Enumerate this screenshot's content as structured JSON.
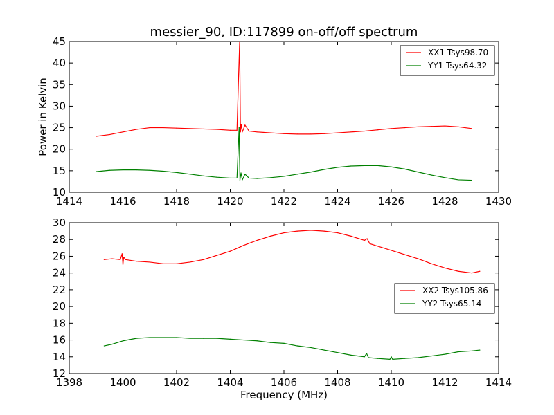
{
  "title": "messier_90, ID:117899 on-off/off spectrum",
  "chart_data": [
    {
      "type": "line",
      "title": "messier_90, ID:117899 on-off/off spectrum",
      "xlabel": "",
      "ylabel": "Power in Kelvin",
      "xlim": [
        1414,
        1430
      ],
      "ylim": [
        10,
        45
      ],
      "xticks": [
        "1414",
        "1416",
        "1418",
        "1420",
        "1422",
        "1424",
        "1426",
        "1428",
        "1430"
      ],
      "yticks": [
        "10",
        "15",
        "20",
        "25",
        "30",
        "35",
        "40",
        "45"
      ],
      "legend": "top-right",
      "grid": false,
      "series": [
        {
          "name": "XX1 Tsys98.70",
          "color": "#ff0000",
          "x": [
            1415.0,
            1415.5,
            1416.0,
            1416.5,
            1417.0,
            1417.5,
            1418.0,
            1418.5,
            1419.0,
            1419.5,
            1420.0,
            1420.25,
            1420.35,
            1420.38,
            1420.41,
            1420.45,
            1420.55,
            1420.7,
            1421.0,
            1421.5,
            1422.0,
            1422.5,
            1423.0,
            1423.5,
            1424.0,
            1424.5,
            1425.0,
            1425.5,
            1426.0,
            1426.5,
            1427.0,
            1427.5,
            1428.0,
            1428.5,
            1429.0
          ],
          "values": [
            23.0,
            23.4,
            24.0,
            24.6,
            25.0,
            25.0,
            24.9,
            24.8,
            24.7,
            24.6,
            24.4,
            24.4,
            45.0,
            24.0,
            25.8,
            24.0,
            25.6,
            24.2,
            24.0,
            23.8,
            23.6,
            23.5,
            23.5,
            23.6,
            23.8,
            24.0,
            24.2,
            24.5,
            24.8,
            25.0,
            25.2,
            25.3,
            25.4,
            25.2,
            24.8
          ]
        },
        {
          "name": "YY1 Tsys64.32",
          "color": "#008000",
          "x": [
            1415.0,
            1415.5,
            1416.0,
            1416.5,
            1417.0,
            1417.5,
            1418.0,
            1418.5,
            1419.0,
            1419.5,
            1420.0,
            1420.25,
            1420.33,
            1420.36,
            1420.4,
            1420.45,
            1420.55,
            1420.7,
            1421.0,
            1421.5,
            1422.0,
            1422.5,
            1423.0,
            1423.5,
            1424.0,
            1424.5,
            1425.0,
            1425.5,
            1426.0,
            1426.5,
            1427.0,
            1427.5,
            1428.0,
            1428.5,
            1429.0
          ],
          "values": [
            14.8,
            15.1,
            15.2,
            15.2,
            15.1,
            14.9,
            14.6,
            14.2,
            13.8,
            13.5,
            13.3,
            13.3,
            25.0,
            12.8,
            14.5,
            12.9,
            14.2,
            13.3,
            13.2,
            13.4,
            13.7,
            14.2,
            14.7,
            15.3,
            15.8,
            16.1,
            16.2,
            16.2,
            15.9,
            15.4,
            14.7,
            14.0,
            13.4,
            12.9,
            12.8
          ]
        }
      ]
    },
    {
      "type": "line",
      "title": "",
      "xlabel": "Frequency (MHz)",
      "ylabel": "",
      "xlim": [
        1398,
        1414
      ],
      "ylim": [
        12,
        30
      ],
      "xticks": [
        "1398",
        "1400",
        "1402",
        "1404",
        "1406",
        "1408",
        "1410",
        "1412",
        "1414"
      ],
      "yticks": [
        "12",
        "14",
        "16",
        "18",
        "20",
        "22",
        "24",
        "26",
        "28",
        "30"
      ],
      "legend": "center-right",
      "grid": false,
      "series": [
        {
          "name": "XX2 Tsys105.86",
          "color": "#ff0000",
          "x": [
            1399.3,
            1399.6,
            1399.9,
            1399.97,
            1400.0,
            1400.03,
            1400.1,
            1400.5,
            1401.0,
            1401.5,
            1402.0,
            1402.5,
            1403.0,
            1403.5,
            1404.0,
            1404.5,
            1405.0,
            1405.5,
            1406.0,
            1406.5,
            1407.0,
            1407.5,
            1408.0,
            1408.5,
            1409.0,
            1409.1,
            1409.2,
            1409.5,
            1410.0,
            1410.5,
            1411.0,
            1411.5,
            1412.0,
            1412.5,
            1413.0,
            1413.3
          ],
          "values": [
            25.6,
            25.7,
            25.6,
            26.3,
            25.0,
            25.9,
            25.6,
            25.4,
            25.3,
            25.1,
            25.1,
            25.3,
            25.6,
            26.1,
            26.6,
            27.3,
            27.9,
            28.4,
            28.8,
            29.0,
            29.1,
            29.0,
            28.8,
            28.4,
            27.9,
            28.1,
            27.5,
            27.2,
            26.7,
            26.2,
            25.7,
            25.1,
            24.6,
            24.2,
            24.0,
            24.2
          ]
        },
        {
          "name": "YY2 Tsys65.14",
          "color": "#008000",
          "x": [
            1399.3,
            1399.6,
            1400.0,
            1400.5,
            1401.0,
            1401.5,
            1402.0,
            1402.5,
            1403.0,
            1403.5,
            1404.0,
            1404.5,
            1405.0,
            1405.5,
            1406.0,
            1406.5,
            1407.0,
            1407.5,
            1408.0,
            1408.5,
            1409.0,
            1409.08,
            1409.15,
            1409.5,
            1409.95,
            1410.0,
            1410.05,
            1410.5,
            1411.0,
            1411.5,
            1412.0,
            1412.5,
            1413.0,
            1413.3
          ],
          "values": [
            15.3,
            15.5,
            15.9,
            16.2,
            16.3,
            16.3,
            16.3,
            16.2,
            16.2,
            16.2,
            16.1,
            16.0,
            15.9,
            15.7,
            15.6,
            15.3,
            15.1,
            14.8,
            14.5,
            14.2,
            14.0,
            14.4,
            13.9,
            13.8,
            13.7,
            14.0,
            13.7,
            13.8,
            13.9,
            14.1,
            14.3,
            14.6,
            14.7,
            14.8
          ]
        }
      ]
    }
  ]
}
